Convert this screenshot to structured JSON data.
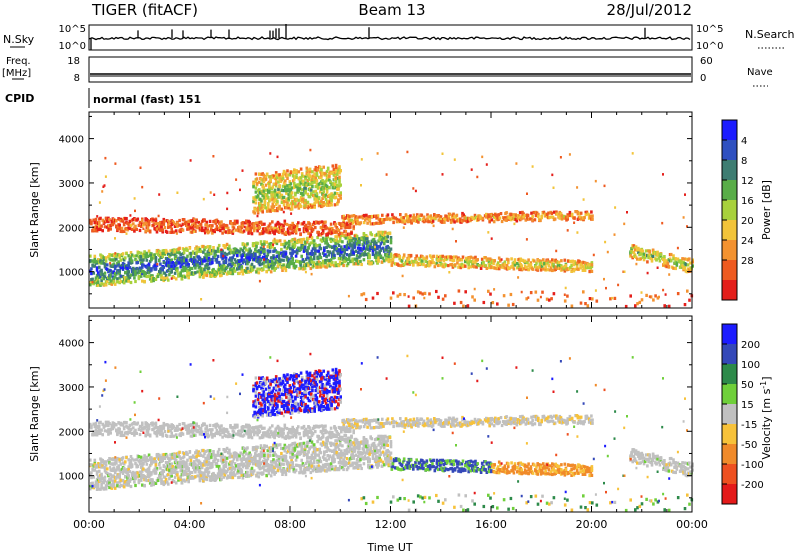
{
  "header": {
    "radar": "TIGER (fitACF)",
    "beam": "Beam 13",
    "date": "28/Jul/2012"
  },
  "params": {
    "nsky_label": "N.Sky",
    "nsky_ticks": [
      "10^5",
      "10^0"
    ],
    "nsearch_label": "N.Search",
    "nsearch_ticks": [
      "10^5",
      "10^0"
    ],
    "freq_label": "Freq.",
    "freq_unit": "[MHz]",
    "freq_ticks": [
      "18",
      "8"
    ],
    "nave_label": "Nave",
    "nave_ticks": [
      "60",
      "0"
    ],
    "cpid_label": "CPID",
    "cpid_value": "normal (fast) 151"
  },
  "chart_data": [
    {
      "type": "heatmap",
      "name": "power",
      "ylabel": "Slant Range [km]",
      "ylim": [
        180,
        4600
      ],
      "yticks": [
        "1000",
        "2000",
        "3000",
        "4000"
      ],
      "xticks": [
        "00:00",
        "04:00",
        "08:00",
        "12:00",
        "16:00",
        "20:00",
        "00:00"
      ],
      "colorbar": {
        "label": "Power [dB]",
        "ticks": [
          "4",
          "8",
          "12",
          "16",
          "20",
          "24",
          "28"
        ],
        "colors": [
          "#1c1cff",
          "#2f50c0",
          "#3e7d72",
          "#59ad48",
          "#a8d13c",
          "#f2c43a",
          "#f39230",
          "#ee5a20",
          "#e41f1b"
        ]
      },
      "bands": [
        {
          "t": [
            0,
            12
          ],
          "center": [
            1050,
            1600
          ],
          "width": 700,
          "level": 0.75
        },
        {
          "t": [
            0,
            10.5
          ],
          "center": [
            2100,
            2000
          ],
          "width": 300,
          "level": 0.2
        },
        {
          "t": [
            6.5,
            10
          ],
          "center": [
            2800,
            3000
          ],
          "width": 900,
          "level": 0.5
        },
        {
          "t": [
            10,
            20
          ],
          "center": [
            2200,
            2300
          ],
          "width": 200,
          "level": 0.3
        },
        {
          "t": [
            12,
            20
          ],
          "center": [
            1300,
            1150
          ],
          "width": 250,
          "level": 0.45
        },
        {
          "t": [
            21.5,
            24
          ],
          "center": [
            1500,
            1150
          ],
          "width": 300,
          "level": 0.5
        }
      ]
    },
    {
      "type": "heatmap",
      "name": "velocity",
      "ylabel": "Slant Range [km]",
      "ylim": [
        180,
        4600
      ],
      "yticks": [
        "1000",
        "2000",
        "3000",
        "4000"
      ],
      "xticks": [
        "00:00",
        "04:00",
        "08:00",
        "12:00",
        "16:00",
        "20:00",
        "00:00"
      ],
      "xlabel": "Time UT",
      "colorbar": {
        "label": "Velocity [m s-1]",
        "label_main": "Velocity [m s",
        "label_sup": "-1",
        "label_end": "]",
        "ticks": [
          "200",
          "100",
          "50",
          "15",
          "-15",
          "-50",
          "-100",
          "-200"
        ],
        "colors": [
          "#1c1cff",
          "#3448b8",
          "#2d8a4a",
          "#6fcf3a",
          "#c0c0c0",
          "#f7c23a",
          "#f08a2a",
          "#ee5020",
          "#e41a1a"
        ]
      }
    }
  ]
}
